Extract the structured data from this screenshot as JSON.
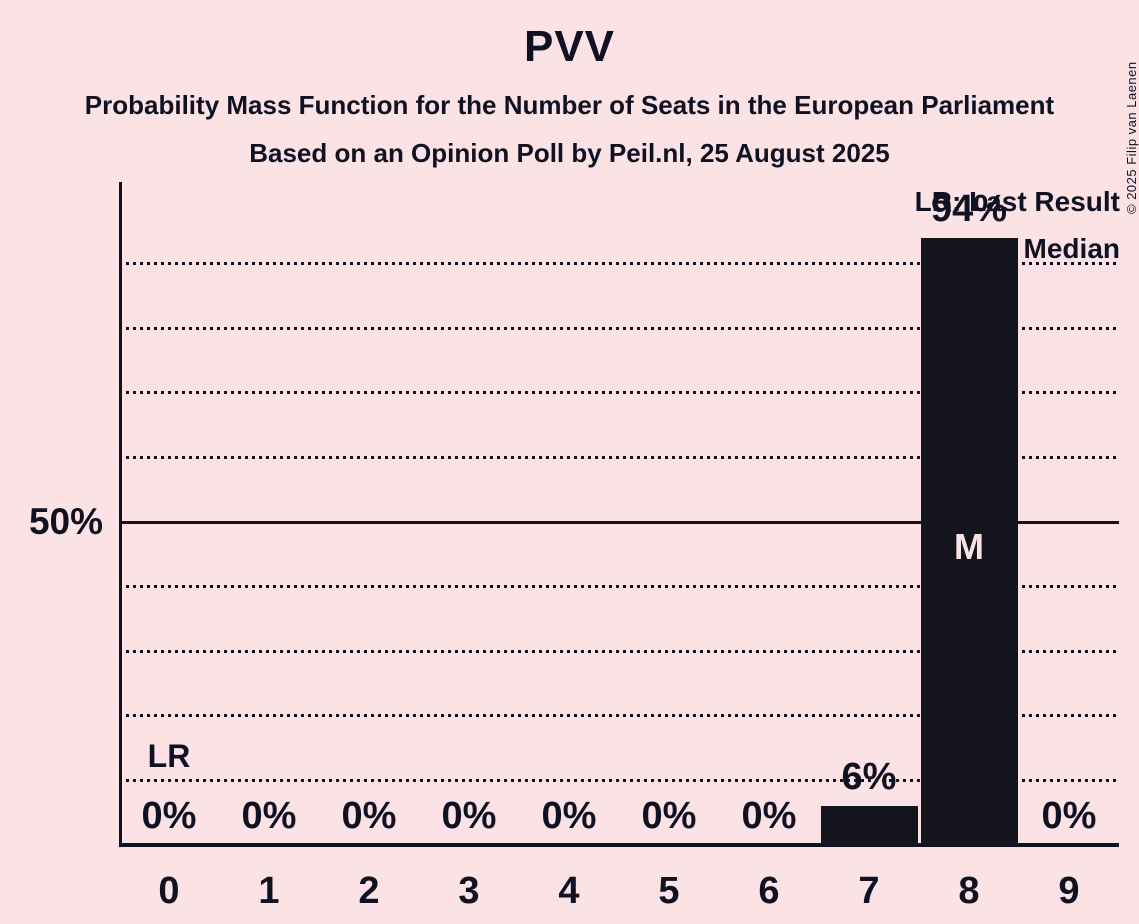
{
  "header": {
    "title": "PVV",
    "subtitle_line1": "Probability Mass Function for the Number of Seats in the European Parliament",
    "subtitle_line2": "Based on an Opinion Poll by Peil.nl, 25 August 2025"
  },
  "copyright": "© 2025 Filip van Laenen",
  "legend": {
    "last_result": "LR: Last Result",
    "median": "M: Median"
  },
  "chart_data": {
    "type": "bar",
    "title": "PVV",
    "categories": [
      "0",
      "1",
      "2",
      "3",
      "4",
      "5",
      "6",
      "7",
      "8",
      "9"
    ],
    "values_percent": [
      0,
      0,
      0,
      0,
      0,
      0,
      0,
      6,
      94,
      0
    ],
    "value_labels": [
      "0%",
      "0%",
      "0%",
      "0%",
      "0%",
      "0%",
      "0%",
      "6%",
      "94%",
      "0%"
    ],
    "ylim": [
      0,
      100
    ],
    "y_gridlines_percent": [
      10,
      20,
      30,
      40,
      50,
      60,
      70,
      80,
      90
    ],
    "y_solid_gridline_percent": 50,
    "y_axis_tick_labels": [
      "50%"
    ],
    "grid": "dotted-horizontal",
    "legend_position": "top-right",
    "annotations": {
      "last_result_marker": {
        "label": "LR",
        "category": "0"
      },
      "median_marker": {
        "label": "M",
        "category": "8"
      }
    },
    "colors": {
      "background": "#fae2e5",
      "ink": "#101223",
      "bar": "#14141d"
    }
  }
}
